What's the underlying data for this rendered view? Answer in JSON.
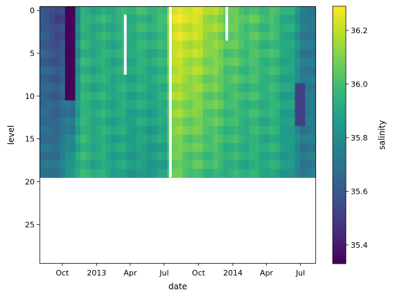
{
  "chart_data": {
    "type": "heatmap",
    "title": "",
    "xlabel": "date",
    "ylabel": "level",
    "x_range": [
      "2012-08-01",
      "2014-08-10"
    ],
    "ylim": [
      29.5,
      -0.5
    ],
    "x_ticks": [
      {
        "date": "2012-10-01",
        "label": "Oct"
      },
      {
        "date": "2013-01-01",
        "label": "2013"
      },
      {
        "date": "2013-04-01",
        "label": "Apr"
      },
      {
        "date": "2013-07-01",
        "label": "Jul"
      },
      {
        "date": "2013-10-01",
        "label": "Oct"
      },
      {
        "date": "2014-01-01",
        "label": "2014"
      },
      {
        "date": "2014-04-01",
        "label": "Apr"
      },
      {
        "date": "2014-07-01",
        "label": "Jul"
      }
    ],
    "y_ticks": [
      {
        "value": 0,
        "label": "0"
      },
      {
        "value": 5,
        "label": "5"
      },
      {
        "value": 10,
        "label": "10"
      },
      {
        "value": 15,
        "label": "15"
      },
      {
        "value": 20,
        "label": "20"
      },
      {
        "value": 25,
        "label": "25"
      }
    ],
    "colorbar": {
      "label": "salinity",
      "colormap": "viridis",
      "vmin": 35.33,
      "vmax": 36.29,
      "ticks": [
        {
          "value": 35.4,
          "label": "35.4"
        },
        {
          "value": 35.6,
          "label": "35.6"
        },
        {
          "value": 35.8,
          "label": "35.8"
        },
        {
          "value": 36.0,
          "label": "36.0"
        },
        {
          "value": 36.2,
          "label": "36.2"
        }
      ]
    },
    "levels_with_data": [
      0,
      19
    ],
    "approx_profiles": [
      {
        "date": "2012-08-01",
        "surface": 35.62,
        "deep": 35.7
      },
      {
        "date": "2012-08-21",
        "surface": 35.55,
        "deep": 35.68
      },
      {
        "date": "2012-09-10",
        "surface": 35.55,
        "deep": 35.72
      },
      {
        "date": "2012-09-30",
        "surface": 35.52,
        "deep": 35.75
      },
      {
        "date": "2012-10-20",
        "surface": 35.42,
        "deep": 35.85
      },
      {
        "date": "2012-11-01",
        "surface": 35.36,
        "deep": 35.9
      },
      {
        "date": "2012-11-15",
        "surface": 35.92,
        "deep": 35.95
      },
      {
        "date": "2013-01-01",
        "surface": 35.93,
        "deep": 35.92
      },
      {
        "date": "2013-03-01",
        "surface": 35.94,
        "deep": 35.88
      },
      {
        "date": "2013-05-01",
        "surface": 35.96,
        "deep": 35.85
      },
      {
        "date": "2013-07-01",
        "surface": 35.97,
        "deep": 35.85
      },
      {
        "date": "2013-07-20",
        "surface": 36.25,
        "deep": 36.05
      },
      {
        "date": "2013-09-01",
        "surface": 36.26,
        "deep": 36.02
      },
      {
        "date": "2013-10-01",
        "surface": 36.22,
        "deep": 36.0
      },
      {
        "date": "2013-11-15",
        "surface": 36.14,
        "deep": 35.97
      },
      {
        "date": "2014-01-01",
        "surface": 36.06,
        "deep": 35.93
      },
      {
        "date": "2014-03-01",
        "surface": 36.02,
        "deep": 35.92
      },
      {
        "date": "2014-05-01",
        "surface": 35.98,
        "deep": 35.9
      },
      {
        "date": "2014-06-15",
        "surface": 35.88,
        "deep": 35.8
      },
      {
        "date": "2014-07-15",
        "surface": 35.72,
        "deep": 35.7
      },
      {
        "date": "2014-08-10",
        "surface": 35.68,
        "deep": 35.72
      }
    ],
    "anomalies": [
      {
        "date": "2012-10-25",
        "level_from": 0,
        "level_to": 10,
        "salinity": 35.34
      },
      {
        "date": "2014-07-01",
        "level_from": 9,
        "level_to": 13,
        "salinity": 35.52
      }
    ],
    "missing_data": [
      {
        "date_from": "2013-03-15",
        "date_to": "2013-03-22",
        "level_from": 1,
        "level_to": 7
      },
      {
        "date_from": "2013-07-14",
        "date_to": "2013-07-21",
        "level_from": 0,
        "level_to": 19
      },
      {
        "date_from": "2013-12-12",
        "date_to": "2013-12-19",
        "level_from": 0,
        "level_to": 3
      }
    ]
  }
}
